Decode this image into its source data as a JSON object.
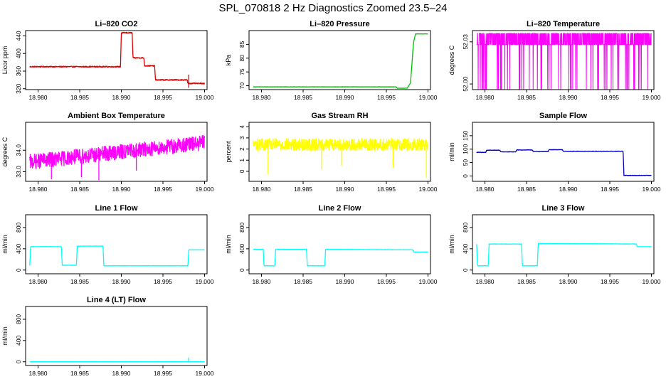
{
  "figure": {
    "title": "SPL_070818 2 Hz Diagnostics Zoomed 23.5–24"
  },
  "chart_data": [
    {
      "type": "line",
      "title": "Li–820 CO2",
      "ylabel": "Licor ppm",
      "color": "#e00000",
      "xlim": [
        18.9785,
        19.0003
      ],
      "xticks": [
        "18.980",
        "18.985",
        "18.990",
        "18.995",
        "19.000"
      ],
      "ylim": [
        318,
        452
      ],
      "yticks": [
        "320",
        "360",
        "400",
        "440"
      ],
      "noise": 1.2,
      "series": [
        {
          "points": [
            [
              18.979,
              370
            ],
            [
              18.9899,
              370
            ],
            [
              18.99,
              447
            ],
            [
              18.9913,
              447
            ],
            [
              18.9914,
              390
            ],
            [
              18.9927,
              390
            ],
            [
              18.9928,
              372
            ],
            [
              18.994,
              372
            ],
            [
              18.9941,
              340
            ],
            [
              18.9979,
              340
            ],
            [
              18.998,
              332
            ],
            [
              19.0,
              332
            ]
          ]
        }
      ],
      "spikes": [
        {
          "x": 18.9981,
          "y1": 322,
          "y2": 352
        }
      ]
    },
    {
      "type": "line",
      "title": "Li–820 Pressure",
      "ylabel": "kPa",
      "color": "#00c000",
      "xlim": [
        18.9785,
        19.0003
      ],
      "xticks": [
        "18.980",
        "18.985",
        "18.990",
        "18.995",
        "19.000"
      ],
      "ylim": [
        68.6,
        90.0
      ],
      "yticks": [
        "70",
        "75",
        "80",
        "85"
      ],
      "noise": 0.05,
      "series": [
        {
          "points": [
            [
              18.979,
              69.6
            ],
            [
              18.9962,
              69.6
            ],
            [
              18.9963,
              69.1
            ],
            [
              18.9975,
              69.1
            ],
            [
              18.9979,
              71
            ],
            [
              18.9981,
              79
            ],
            [
              18.9982,
              83.5
            ],
            [
              18.9983,
              86.2
            ],
            [
              18.9985,
              88.8
            ],
            [
              19.0,
              88.8
            ]
          ]
        }
      ],
      "spikes": []
    },
    {
      "type": "line",
      "title": "Li–820 Temperature",
      "ylabel": "degrees C",
      "color": "#ff00ff",
      "xlim": [
        18.9785,
        19.0003
      ],
      "xticks": [
        "18.980",
        "18.985",
        "18.990",
        "18.995",
        "19.000"
      ],
      "ylim": [
        51.996,
        52.038
      ],
      "yticks": [
        "52.00",
        "52.03"
      ],
      "pattern": "quantized",
      "levels": [
        52.036,
        52.028,
        51.996
      ],
      "series": [],
      "spikes": []
    },
    {
      "type": "line",
      "title": "Ambient Box Temperature",
      "ylabel": "degrees C",
      "color": "#ff00ff",
      "xlim": [
        18.9785,
        19.0003
      ],
      "xticks": [
        "18.980",
        "18.985",
        "18.990",
        "18.995",
        "19.000"
      ],
      "ylim": [
        32.55,
        35.3
      ],
      "yticks": [
        "33.0",
        "34.0"
      ],
      "noise": 0.35,
      "series": [
        {
          "points": [
            [
              18.979,
              33.45
            ],
            [
              19.0,
              34.35
            ]
          ]
        }
      ],
      "spikes": [
        {
          "x": 18.9816,
          "y1": 33.4,
          "y2": 32.65
        },
        {
          "x": 18.9852,
          "y1": 33.5,
          "y2": 32.75
        },
        {
          "x": 18.9873,
          "y1": 33.6,
          "y2": 32.6
        },
        {
          "x": 18.9918,
          "y1": 33.8,
          "y2": 33.05
        }
      ]
    },
    {
      "type": "line",
      "title": "Gas Stream RH",
      "ylabel": "percent",
      "color": "#ffff00",
      "xlim": [
        18.9785,
        19.0003
      ],
      "xticks": [
        "18.980",
        "18.985",
        "18.990",
        "18.995",
        "19.000"
      ],
      "ylim": [
        -0.9,
        4.4
      ],
      "yticks": [
        "0",
        "1",
        "2",
        "3",
        "4"
      ],
      "noise": 0.55,
      "series": [
        {
          "points": [
            [
              18.979,
              2.4
            ],
            [
              19.0,
              2.4
            ]
          ]
        }
      ],
      "spikes": [
        {
          "x": 18.9808,
          "y1": 2.2,
          "y2": -0.3
        },
        {
          "x": 18.9872,
          "y1": 2.2,
          "y2": 0.2
        },
        {
          "x": 18.9896,
          "y1": 2.3,
          "y2": 0.5
        },
        {
          "x": 18.9958,
          "y1": 2.2,
          "y2": 0.3
        },
        {
          "x": 18.9998,
          "y1": 2.2,
          "y2": -0.6
        }
      ]
    },
    {
      "type": "line",
      "title": "Sample Flow",
      "ylabel": "ml/min",
      "color": "#0000c0",
      "xlim": [
        18.9785,
        19.0003
      ],
      "xticks": [
        "18.980",
        "18.985",
        "18.990",
        "18.995",
        "19.000"
      ],
      "ylim": [
        -20,
        200
      ],
      "yticks": [
        "0",
        "50",
        "100",
        "150"
      ],
      "noise": 0.8,
      "series": [
        {
          "points": [
            [
              18.979,
              88
            ],
            [
              18.9801,
              88
            ],
            [
              18.9802,
              96
            ],
            [
              18.9818,
              96
            ],
            [
              18.9819,
              90
            ],
            [
              18.9837,
              90
            ],
            [
              18.9838,
              97
            ],
            [
              18.9857,
              97
            ],
            [
              18.9858,
              91
            ],
            [
              18.9876,
              91
            ],
            [
              18.9877,
              98
            ],
            [
              18.9893,
              98
            ],
            [
              18.9894,
              92
            ],
            [
              18.9966,
              92
            ],
            [
              18.9967,
              2
            ],
            [
              19.0,
              2
            ]
          ]
        }
      ],
      "spikes": []
    },
    {
      "type": "line",
      "title": "Line 1 Flow",
      "ylabel": "ml/min",
      "color": "#00ffff",
      "xlim": [
        18.9785,
        19.0003
      ],
      "xticks": [
        "18.980",
        "18.985",
        "18.990",
        "18.995",
        "19.000"
      ],
      "ylim": [
        -70,
        1040
      ],
      "yticks": [
        "0",
        "400",
        "800"
      ],
      "noise": 3,
      "series": [
        {
          "points": [
            [
              18.979,
              80
            ],
            [
              18.9791,
              440
            ],
            [
              18.9828,
              440
            ],
            [
              18.9829,
              90
            ],
            [
              18.9846,
              90
            ],
            [
              18.9847,
              450
            ],
            [
              18.9878,
              450
            ],
            [
              18.9879,
              80
            ],
            [
              18.998,
              80
            ],
            [
              18.9981,
              380
            ],
            [
              19.0,
              380
            ]
          ]
        }
      ],
      "spikes": []
    },
    {
      "type": "line",
      "title": "Line 2 Flow",
      "ylabel": "ml/min",
      "color": "#00ffff",
      "xlim": [
        18.9785,
        19.0003
      ],
      "xticks": [
        "18.980",
        "18.985",
        "18.990",
        "18.995",
        "19.000"
      ],
      "ylim": [
        -70,
        1040
      ],
      "yticks": [
        "0",
        "400",
        "800"
      ],
      "noise": 3,
      "series": [
        {
          "points": [
            [
              18.979,
              390
            ],
            [
              18.9802,
              390
            ],
            [
              18.9803,
              80
            ],
            [
              18.9816,
              80
            ],
            [
              18.9817,
              390
            ],
            [
              18.9854,
              390
            ],
            [
              18.9855,
              80
            ],
            [
              18.9876,
              80
            ],
            [
              18.9877,
              390
            ],
            [
              18.9982,
              380
            ],
            [
              18.9983,
              340
            ],
            [
              19.0,
              340
            ]
          ]
        }
      ],
      "spikes": []
    },
    {
      "type": "line",
      "title": "Line 3 Flow",
      "ylabel": "ml/min",
      "color": "#00ffff",
      "xlim": [
        18.9785,
        19.0003
      ],
      "xticks": [
        "18.980",
        "18.985",
        "18.990",
        "18.995",
        "19.000"
      ],
      "ylim": [
        -70,
        1040
      ],
      "yticks": [
        "0",
        "400",
        "800"
      ],
      "noise": 3,
      "series": [
        {
          "points": [
            [
              18.979,
              490
            ],
            [
              18.9791,
              80
            ],
            [
              18.9804,
              80
            ],
            [
              18.9805,
              490
            ],
            [
              18.9844,
              490
            ],
            [
              18.9845,
              80
            ],
            [
              18.9863,
              80
            ],
            [
              18.9864,
              500
            ],
            [
              18.9982,
              490
            ],
            [
              18.9983,
              440
            ],
            [
              19.0,
              440
            ]
          ]
        }
      ],
      "spikes": []
    },
    {
      "type": "line",
      "title": "Line 4 (LT) Flow",
      "ylabel": "ml/min",
      "color": "#00ffff",
      "xlim": [
        18.9785,
        19.0003
      ],
      "xticks": [
        "18.980",
        "18.985",
        "18.990",
        "18.995",
        "19.000"
      ],
      "ylim": [
        -70,
        1040
      ],
      "yticks": [
        "0",
        "400",
        "800"
      ],
      "noise": 1,
      "series": [
        {
          "points": [
            [
              18.979,
              2
            ],
            [
              19.0,
              2
            ]
          ]
        }
      ],
      "spikes": [
        {
          "x": 18.9981,
          "y1": 2,
          "y2": 80
        }
      ]
    }
  ]
}
